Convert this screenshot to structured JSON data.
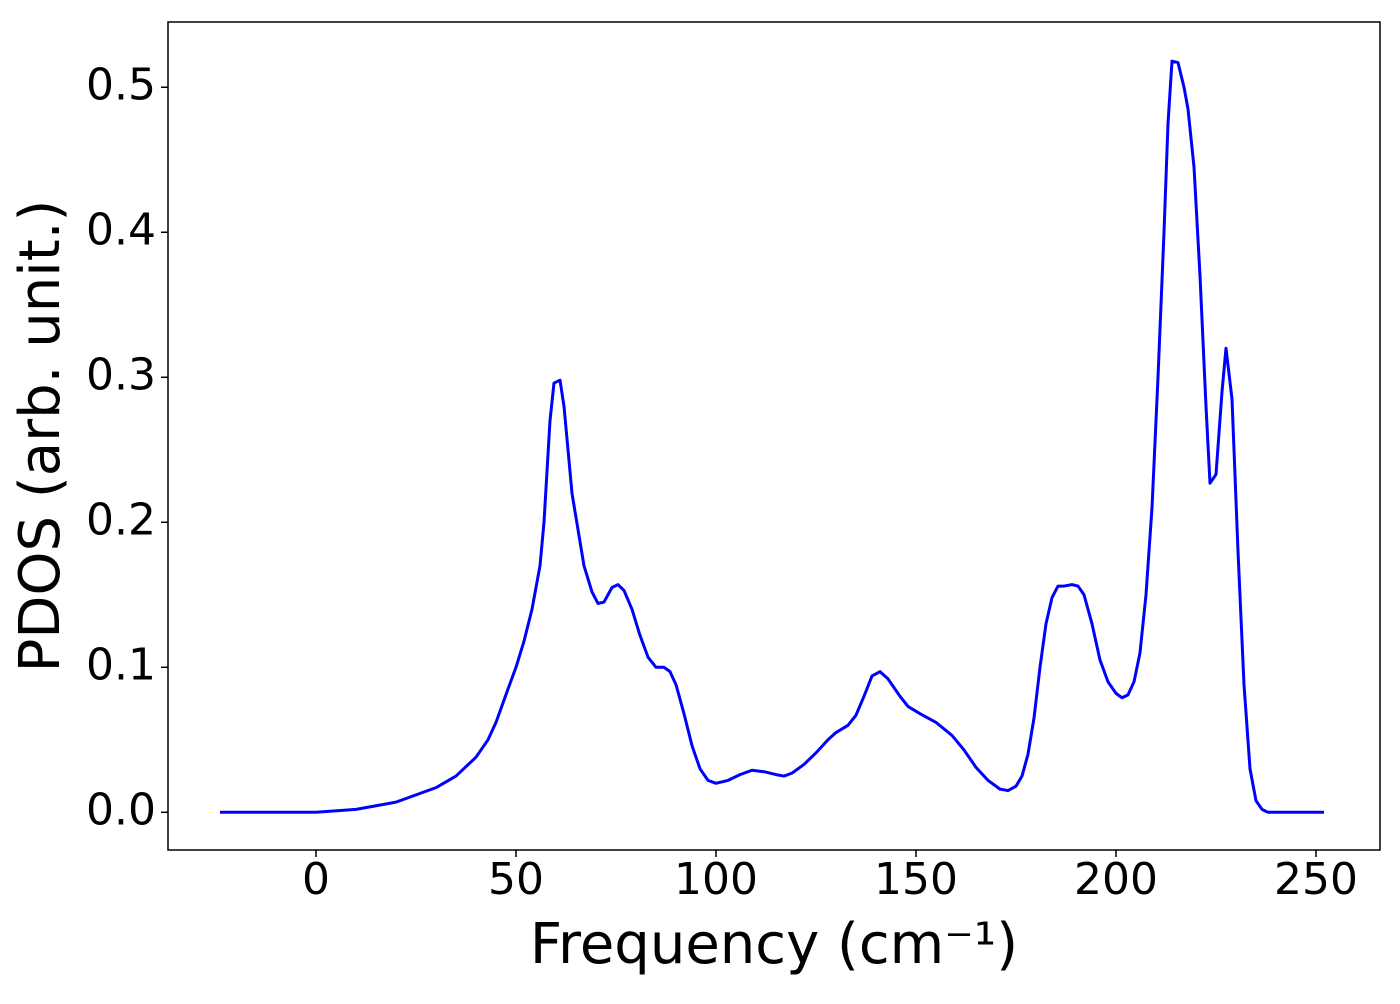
{
  "chart_data": {
    "type": "line",
    "xlabel": "Frequency (cm⁻¹)",
    "ylabel": "PDOS (arb. unit.)",
    "color": "#0000ff",
    "x": [
      -24,
      0,
      10,
      20,
      30,
      35,
      40,
      43,
      45,
      48,
      50,
      52,
      54,
      56,
      57,
      58.5,
      59.5,
      61,
      62,
      64,
      67,
      69,
      70.5,
      72,
      74,
      75.5,
      77,
      79,
      81,
      83,
      85,
      87,
      88.5,
      90,
      92,
      94,
      96,
      98,
      100,
      103,
      106,
      109,
      112,
      115,
      117,
      119,
      122,
      125,
      128,
      130,
      133,
      135,
      137,
      139,
      141,
      143,
      146,
      148,
      151,
      155,
      159,
      162,
      165,
      168,
      171,
      173,
      175,
      176.5,
      178,
      179.5,
      181,
      182.5,
      184,
      185.5,
      187,
      189,
      190.5,
      192,
      194,
      196,
      198,
      200,
      201.5,
      203,
      204.5,
      206,
      207.5,
      209,
      210.5,
      212,
      213,
      214,
      215.5,
      217,
      218,
      219.5,
      221,
      222.5,
      223.5,
      225,
      226.5,
      227.5,
      229,
      230.5,
      232,
      233.5,
      235,
      236.5,
      238,
      245,
      252
    ],
    "values": [
      0,
      0,
      0.002,
      0.007,
      0.017,
      0.025,
      0.038,
      0.05,
      0.062,
      0.085,
      0.1,
      0.118,
      0.14,
      0.17,
      0.2,
      0.27,
      0.296,
      0.298,
      0.28,
      0.22,
      0.17,
      0.152,
      0.144,
      0.145,
      0.155,
      0.157,
      0.153,
      0.14,
      0.122,
      0.107,
      0.1,
      0.1,
      0.097,
      0.088,
      0.068,
      0.046,
      0.03,
      0.022,
      0.02,
      0.022,
      0.026,
      0.029,
      0.028,
      0.026,
      0.025,
      0.027,
      0.033,
      0.041,
      0.05,
      0.055,
      0.06,
      0.067,
      0.08,
      0.094,
      0.097,
      0.092,
      0.08,
      0.073,
      0.068,
      0.062,
      0.053,
      0.043,
      0.031,
      0.022,
      0.016,
      0.015,
      0.018,
      0.025,
      0.04,
      0.065,
      0.1,
      0.13,
      0.148,
      0.156,
      0.156,
      0.157,
      0.156,
      0.15,
      0.13,
      0.105,
      0.09,
      0.082,
      0.079,
      0.081,
      0.09,
      0.11,
      0.15,
      0.21,
      0.3,
      0.4,
      0.475,
      0.518,
      0.517,
      0.5,
      0.485,
      0.445,
      0.37,
      0.28,
      0.227,
      0.233,
      0.29,
      0.32,
      0.285,
      0.18,
      0.088,
      0.03,
      0.008,
      0.002,
      0,
      0,
      0
    ],
    "xlim": [
      -37,
      266
    ],
    "xticks": [
      0,
      50,
      100,
      150,
      200,
      250
    ],
    "ylim": [
      -0.026,
      0.545
    ],
    "yticks": [
      {
        "value": 0,
        "label": "0.0"
      },
      0.1,
      0.2,
      0.3,
      0.4,
      0.5
    ]
  }
}
